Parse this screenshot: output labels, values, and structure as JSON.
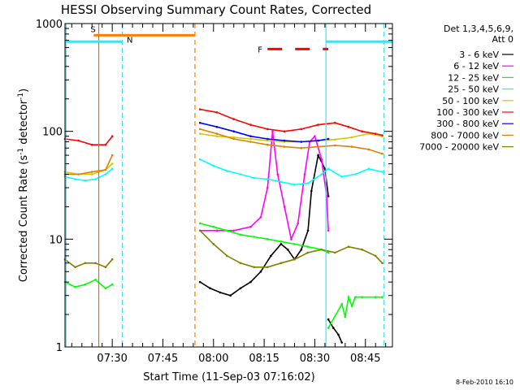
{
  "chart_data": {
    "type": "line",
    "title": "HESSI Observing Summary Count Rates, Corrected",
    "xlabel": "Start Time (11-Sep-03 07:16:02)",
    "ylabel_main": "Corrected Count Rate (s",
    "ylabel_sup1": "-1",
    "ylabel_mid": " detector",
    "ylabel_sup2": "-1",
    "ylabel_end": ")",
    "footer": "8-Feb-2010 16:10",
    "y_scale": "log",
    "ylim": [
      1,
      1000
    ],
    "xlim_minutes": [
      0,
      97
    ],
    "x_ticks": [
      {
        "minute": 14,
        "label": "07:30"
      },
      {
        "minute": 29,
        "label": "07:45"
      },
      {
        "minute": 44,
        "label": "08:00"
      },
      {
        "minute": 59,
        "label": "08:15"
      },
      {
        "minute": 74,
        "label": "08:30"
      },
      {
        "minute": 89,
        "label": "08:45"
      }
    ],
    "y_ticks": [
      {
        "value": 1,
        "label": "1"
      },
      {
        "value": 10,
        "label": "10"
      },
      {
        "value": 100,
        "label": "100"
      },
      {
        "value": 1000,
        "label": "1000"
      }
    ],
    "legend_title1": "Det 1,3,4,5,6,9,",
    "legend_title2": "Att 0",
    "legend_position": "right",
    "series": [
      {
        "name": "3 - 6 keV",
        "color": "#000000",
        "segments": [
          {
            "x": [
              0,
              5,
              10,
              14
            ],
            "y": [
              5.5,
              5.5,
              5.5,
              5.5
            ],
            "hidden": true
          },
          {
            "x": [
              40,
              43,
              46,
              49,
              52,
              55,
              58,
              61,
              64,
              66,
              68,
              70,
              72,
              73,
              75,
              77,
              78
            ],
            "y": [
              4.0,
              3.5,
              3.2,
              3.0,
              3.5,
              4.0,
              5.0,
              7.0,
              9.0,
              8.0,
              6.5,
              8.0,
              12,
              28,
              60,
              45,
              25
            ]
          },
          {
            "x": [
              78,
              79.5,
              81,
              82
            ],
            "y": [
              1.8,
              1.5,
              1.3,
              1.1
            ]
          }
        ]
      },
      {
        "name": "6 - 12 keV",
        "color": "#ff00ff",
        "segments": [
          {
            "x": [
              40,
              45,
              50,
              55,
              58,
              60,
              61.5,
              63,
              65,
              67,
              69,
              71,
              72.5,
              74,
              76,
              77.5,
              78
            ],
            "y": [
              12,
              12,
              12,
              13,
              16,
              30,
              100,
              40,
              20,
              10,
              14,
              40,
              80,
              90,
              55,
              25,
              12
            ]
          }
        ]
      },
      {
        "name": "12 - 25 keV",
        "color": "#00ff00",
        "segments": [
          {
            "x": [
              0,
              3,
              6,
              9,
              12,
              14
            ],
            "y": [
              4.0,
              3.6,
              3.8,
              4.2,
              3.5,
              3.8
            ]
          },
          {
            "x": [
              40,
              44,
              48,
              52,
              56,
              60,
              64,
              68,
              72,
              76,
              78
            ],
            "y": [
              14,
              13,
              12,
              11,
              10.5,
              10,
              9.5,
              9.0,
              8.5,
              8.0,
              7.5
            ]
          },
          {
            "x": [
              78,
              82,
              83,
              84,
              85,
              86,
              88,
              92,
              94
            ],
            "y": [
              1.5,
              2.5,
              1.9,
              2.9,
              2.4,
              2.9,
              2.9,
              2.9,
              2.9
            ]
          }
        ]
      },
      {
        "name": "25 - 50 keV",
        "color": "#00ffff",
        "segments": [
          {
            "x": [
              0,
              3,
              6,
              9,
              12,
              14
            ],
            "y": [
              38,
              36,
              35,
              36,
              40,
              45
            ]
          },
          {
            "x": [
              40,
              44,
              48,
              52,
              56,
              60,
              64,
              68,
              72,
              76,
              78,
              82,
              86,
              90,
              94
            ],
            "y": [
              55,
              48,
              43,
              40,
              37,
              36,
              34,
              32,
              33,
              40,
              45,
              38,
              40,
              45,
              42
            ]
          }
        ]
      },
      {
        "name": "50 - 100 keV",
        "color": "#d2c800",
        "segments": [
          {
            "x": [
              0,
              4,
              8,
              12,
              14
            ],
            "y": [
              42,
              40,
              40,
              44,
              50
            ]
          },
          {
            "x": [
              40,
              45,
              50,
              55,
              60,
              65,
              70,
              75,
              80,
              85,
              90,
              94
            ],
            "y": [
              95,
              90,
              88,
              85,
              82,
              80,
              80,
              82,
              84,
              88,
              95,
              90
            ]
          }
        ]
      },
      {
        "name": "100 - 300 keV",
        "color": "#ff0000",
        "segments": [
          {
            "x": [
              0,
              4,
              8,
              12,
              14
            ],
            "y": [
              85,
              82,
              75,
              75,
              90
            ]
          },
          {
            "x": [
              40,
              45,
              50,
              55,
              60,
              65,
              70,
              75,
              80,
              84,
              88,
              92,
              94
            ],
            "y": [
              160,
              150,
              130,
              115,
              105,
              100,
              105,
              115,
              120,
              110,
              100,
              95,
              92
            ]
          }
        ]
      },
      {
        "name": "300 - 800 keV",
        "color": "#0000ff",
        "segments": [
          {
            "x": [
              40,
              45,
              50,
              55,
              60,
              65,
              70,
              75,
              78
            ],
            "y": [
              120,
              110,
              100,
              90,
              85,
              82,
              80,
              82,
              85
            ]
          }
        ]
      },
      {
        "name": "800 - 7000 keV",
        "color": "#e08000",
        "segments": [
          {
            "x": [
              0,
              4,
              8,
              12,
              14
            ],
            "y": [
              40,
              40,
              42,
              44,
              60
            ]
          },
          {
            "x": [
              40,
              45,
              50,
              55,
              60,
              65,
              70,
              75,
              80,
              85,
              90,
              94
            ],
            "y": [
              105,
              95,
              85,
              80,
              75,
              72,
              70,
              72,
              74,
              72,
              68,
              62
            ]
          }
        ]
      },
      {
        "name": "7000 - 20000 keV",
        "color": "#808000",
        "segments": [
          {
            "x": [
              0,
              3,
              6,
              9,
              12,
              14
            ],
            "y": [
              6.5,
              5.5,
              6.0,
              6.0,
              5.5,
              6.5
            ]
          },
          {
            "x": [
              40,
              44,
              48,
              52,
              56,
              60,
              64,
              68,
              72,
              76,
              80,
              84,
              88,
              92,
              94
            ],
            "y": [
              12,
              9,
              7,
              6,
              5.5,
              5.5,
              6.0,
              6.5,
              7.5,
              8.0,
              7.5,
              8.5,
              8.0,
              7.0,
              6.0
            ]
          }
        ]
      }
    ],
    "flag_bars": [
      {
        "label": "S",
        "color": "#ff8000",
        "x": [
          8.5,
          38.5
        ],
        "level": 780
      },
      {
        "label": "N",
        "color": "#40e0f0",
        "x": [
          0,
          17
        ],
        "level": 680,
        "label_x": 18.3,
        "label_level": 710
      },
      {
        "label": "",
        "color": "#40e0f0",
        "x": [
          77.3,
          97
        ],
        "level": 680
      },
      {
        "label": "F",
        "color": "#ff0000",
        "x": [
          60,
          78
        ],
        "level": 580,
        "dash": "18 16"
      }
    ],
    "vertical_lines": [
      {
        "x": 0.3,
        "color": "#40e0f0",
        "dash": ""
      },
      {
        "x": 10,
        "color": "#c08000",
        "dash": ""
      },
      {
        "x": 17,
        "color": "#40e0f0",
        "dash": "6 4"
      },
      {
        "x": 38.5,
        "color": "#ff8000",
        "dash": "6 4"
      },
      {
        "x": 77.3,
        "color": "#40e0f0",
        "dash": ""
      },
      {
        "x": 94.5,
        "color": "#40e0f0",
        "dash": "6 4"
      }
    ]
  }
}
